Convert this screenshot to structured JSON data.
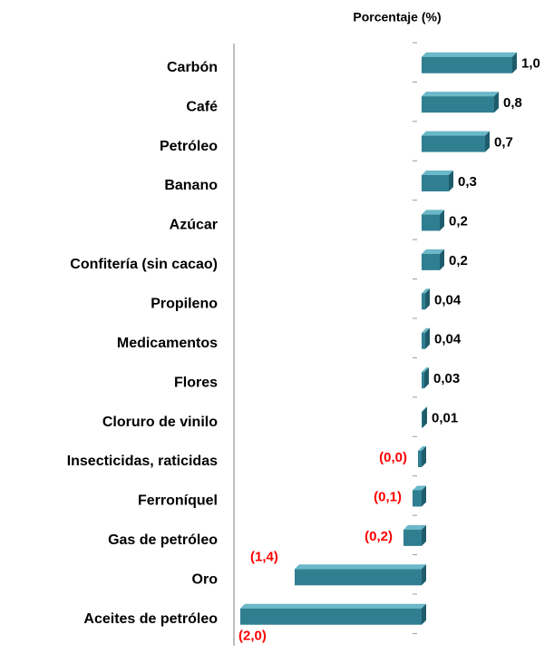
{
  "chart_data": {
    "type": "bar",
    "orientation": "horizontal",
    "title": "Porcentaje (%)",
    "categories": [
      "Carbón",
      "Café",
      "Petróleo",
      "Banano",
      "Azúcar",
      "Confitería (sin cacao)",
      "Propileno ",
      "Medicamentos",
      "Flores",
      "Cloruro de vinilo",
      "Insecticidas, raticidas",
      "Ferroníquel",
      "Gas de petróleo",
      "Oro",
      "Aceites de petróleo"
    ],
    "values": [
      1.0,
      0.8,
      0.7,
      0.3,
      0.2,
      0.2,
      0.04,
      0.04,
      0.03,
      0.01,
      -0.04,
      -0.1,
      -0.2,
      -1.4,
      -2.0
    ],
    "value_labels": [
      "1,0",
      "0,8",
      "0,7",
      "0,3",
      "0,2",
      "0,2",
      "0,04",
      "0,04",
      "0,03",
      "0,01",
      "(0,0)",
      "(0,1)",
      "(0,2)",
      "(1,4)",
      "(2,0)"
    ],
    "color": "#2f7f91",
    "positive_label_color": "#000000",
    "negative_label_color": "#ff0000",
    "xlim": [
      -2.0,
      1.0
    ]
  }
}
